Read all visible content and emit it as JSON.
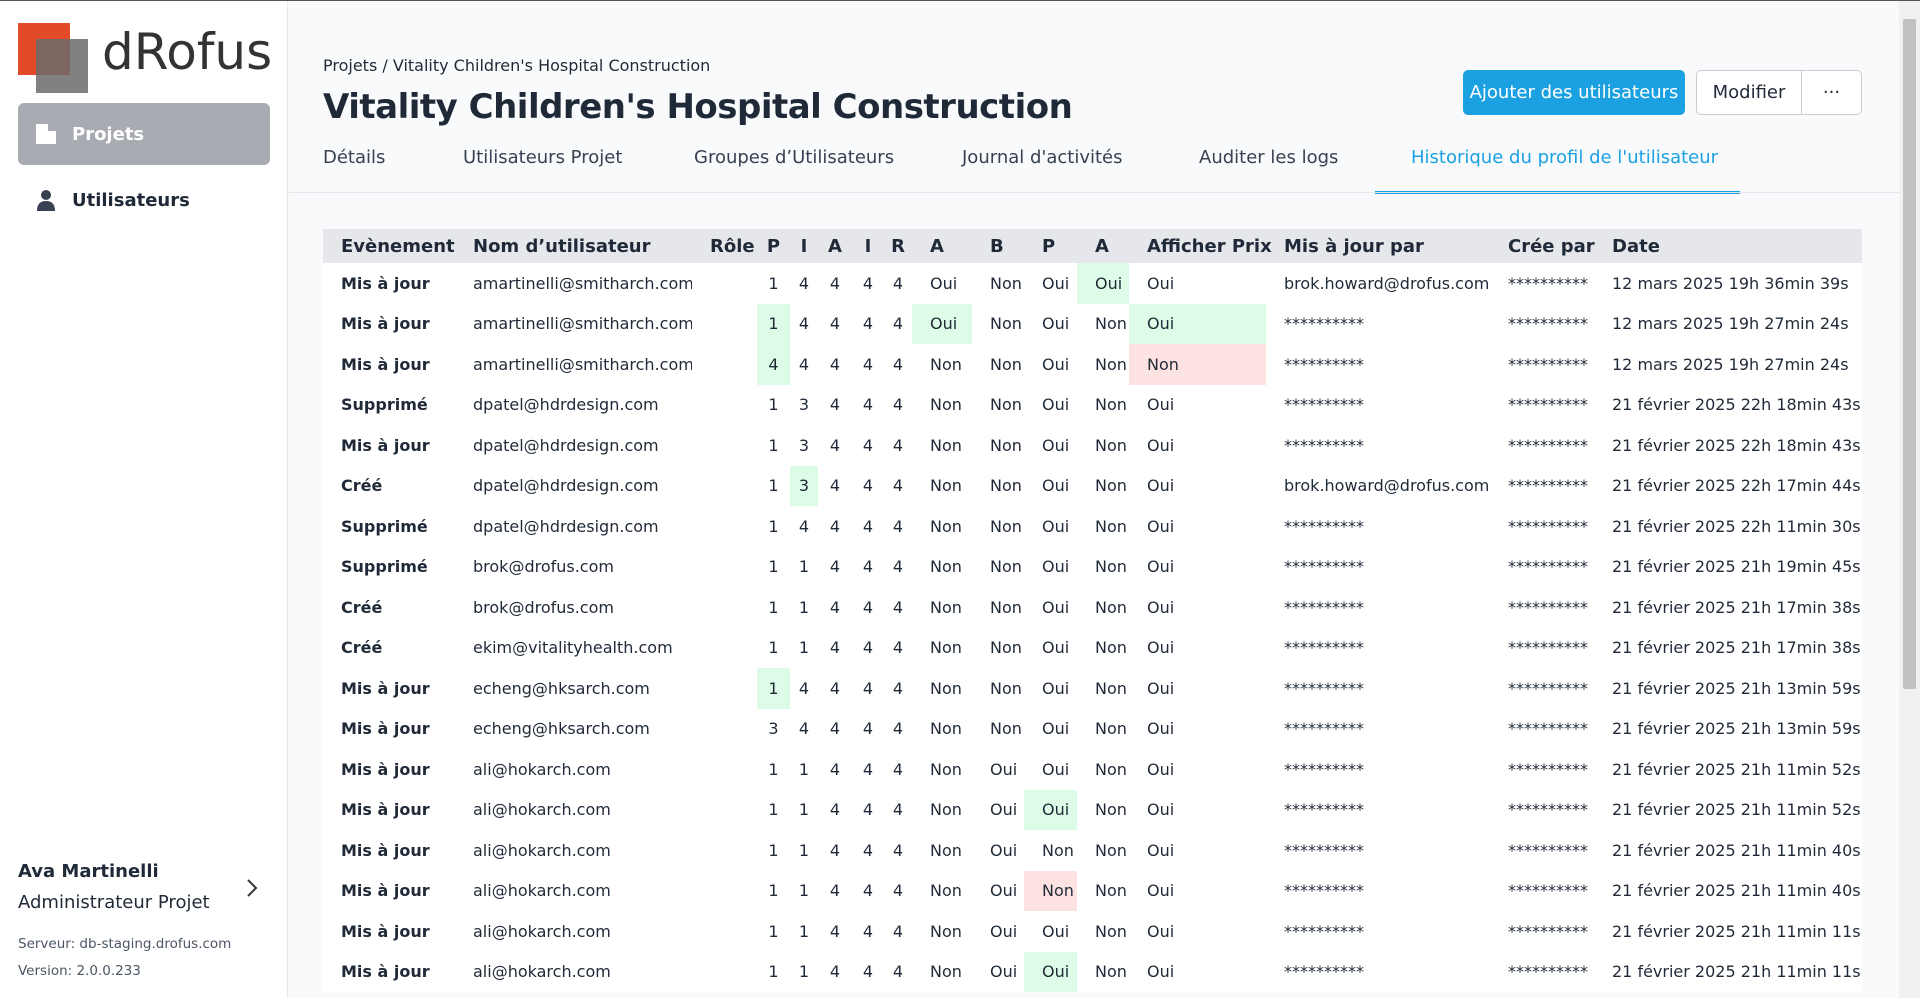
{
  "sidebar": {
    "logo": "dRofus",
    "nav": [
      "Projets",
      "Utilisateurs"
    ],
    "user_name": "Ava Martinelli",
    "user_role": "Administrateur Projet",
    "server": "Serveur: db-staging.drofus.com",
    "version": "Version: 2.0.0.233"
  },
  "header": {
    "breadcrumb": "Projets / Vitality Children's Hospital Construction",
    "title": "Vitality Children's Hospital Construction",
    "buttons": [
      "Ajouter des utilisateurs",
      "Modifier",
      "···"
    ]
  },
  "tabs": {
    "items": [
      "Détails",
      "Utilisateurs Projet",
      "Groupes d’Utilisateurs",
      "Journal d'activités",
      "Auditer les logs",
      "Historique du profil de l'utilisateur"
    ],
    "active": 5
  },
  "table": {
    "columns": [
      "Evènement",
      "Nom d’utilisateur",
      "Rôle",
      "P",
      "I",
      "A",
      "I",
      "R",
      "A",
      "B",
      "P",
      "A",
      "Afficher Prix",
      "Mis à jour par",
      "Crée par",
      "Date"
    ],
    "highlight_colors": {
      "green": "#dcfce7",
      "red": "#fde2e2"
    },
    "rows": [
      {
        "cells": [
          "Mis à jour",
          "amartinelli@smitharch.com",
          null,
          1,
          4,
          4,
          4,
          4,
          "Oui",
          "Non",
          "Oui",
          "Oui",
          "Oui",
          "brok.howard@drofus.com",
          "**********",
          "12 mars 2025 19h 36min 39s"
        ],
        "green": [
          11
        ],
        "red": []
      },
      {
        "cells": [
          "Mis à jour",
          "amartinelli@smitharch.com",
          null,
          1,
          4,
          4,
          4,
          4,
          "Oui",
          "Non",
          "Oui",
          "Non",
          "Oui",
          "**********",
          "**********",
          "12 mars 2025 19h 27min 24s"
        ],
        "green": [
          3,
          8,
          12
        ],
        "red": []
      },
      {
        "cells": [
          "Mis à jour",
          "amartinelli@smitharch.com",
          null,
          4,
          4,
          4,
          4,
          4,
          "Non",
          "Non",
          "Oui",
          "Non",
          "Non",
          "**********",
          "**********",
          "12 mars 2025 19h 27min 24s"
        ],
        "green": [
          3
        ],
        "red": [
          12
        ]
      },
      {
        "cells": [
          "Supprimé",
          "dpatel@hdrdesign.com",
          null,
          1,
          3,
          4,
          4,
          4,
          "Non",
          "Non",
          "Oui",
          "Non",
          "Oui",
          "**********",
          "**********",
          "21 février 2025 22h 18min 43s"
        ],
        "green": [],
        "red": []
      },
      {
        "cells": [
          "Mis à jour",
          "dpatel@hdrdesign.com",
          null,
          1,
          3,
          4,
          4,
          4,
          "Non",
          "Non",
          "Oui",
          "Non",
          "Oui",
          "**********",
          "**********",
          "21 février 2025 22h 18min 43s"
        ],
        "green": [],
        "red": []
      },
      {
        "cells": [
          "Créé",
          "dpatel@hdrdesign.com",
          null,
          1,
          3,
          4,
          4,
          4,
          "Non",
          "Non",
          "Oui",
          "Non",
          "Oui",
          "brok.howard@drofus.com",
          "**********",
          "21 février 2025 22h 17min 44s"
        ],
        "green": [
          4
        ],
        "red": []
      },
      {
        "cells": [
          "Supprimé",
          "dpatel@hdrdesign.com",
          null,
          1,
          4,
          4,
          4,
          4,
          "Non",
          "Non",
          "Oui",
          "Non",
          "Oui",
          "**********",
          "**********",
          "21 février 2025 22h 11min 30s"
        ],
        "green": [],
        "red": []
      },
      {
        "cells": [
          "Supprimé",
          "brok@drofus.com",
          null,
          1,
          1,
          4,
          4,
          4,
          "Non",
          "Non",
          "Oui",
          "Non",
          "Oui",
          "**********",
          "**********",
          "21 février 2025 21h 19min 45s"
        ],
        "green": [],
        "red": []
      },
      {
        "cells": [
          "Créé",
          "brok@drofus.com",
          null,
          1,
          1,
          4,
          4,
          4,
          "Non",
          "Non",
          "Oui",
          "Non",
          "Oui",
          "**********",
          "**********",
          "21 février 2025 21h 17min 38s"
        ],
        "green": [],
        "red": []
      },
      {
        "cells": [
          "Créé",
          "ekim@vitalityhealth.com",
          null,
          1,
          1,
          4,
          4,
          4,
          "Non",
          "Non",
          "Oui",
          "Non",
          "Oui",
          "**********",
          "**********",
          "21 février 2025 21h 17min 38s"
        ],
        "green": [],
        "red": []
      },
      {
        "cells": [
          "Mis à jour",
          "echeng@hksarch.com",
          null,
          1,
          4,
          4,
          4,
          4,
          "Non",
          "Non",
          "Oui",
          "Non",
          "Oui",
          "**********",
          "**********",
          "21 février 2025 21h 13min 59s"
        ],
        "green": [
          3
        ],
        "red": []
      },
      {
        "cells": [
          "Mis à jour",
          "echeng@hksarch.com",
          null,
          3,
          4,
          4,
          4,
          4,
          "Non",
          "Non",
          "Oui",
          "Non",
          "Oui",
          "**********",
          "**********",
          "21 février 2025 21h 13min 59s"
        ],
        "green": [],
        "red": []
      },
      {
        "cells": [
          "Mis à jour",
          "ali@hokarch.com",
          null,
          1,
          1,
          4,
          4,
          4,
          "Non",
          "Oui",
          "Oui",
          "Non",
          "Oui",
          "**********",
          "**********",
          "21 février 2025 21h 11min 52s"
        ],
        "green": [],
        "red": []
      },
      {
        "cells": [
          "Mis à jour",
          "ali@hokarch.com",
          null,
          1,
          1,
          4,
          4,
          4,
          "Non",
          "Oui",
          "Oui",
          "Non",
          "Oui",
          "**********",
          "**********",
          "21 février 2025 21h 11min 52s"
        ],
        "green": [
          10
        ],
        "red": []
      },
      {
        "cells": [
          "Mis à jour",
          "ali@hokarch.com",
          null,
          1,
          1,
          4,
          4,
          4,
          "Non",
          "Oui",
          "Non",
          "Non",
          "Oui",
          "**********",
          "**********",
          "21 février 2025 21h 11min 40s"
        ],
        "green": [],
        "red": []
      },
      {
        "cells": [
          "Mis à jour",
          "ali@hokarch.com",
          null,
          1,
          1,
          4,
          4,
          4,
          "Non",
          "Oui",
          "Non",
          "Non",
          "Oui",
          "**********",
          "**********",
          "21 février 2025 21h 11min 40s"
        ],
        "green": [],
        "red": [
          10
        ]
      },
      {
        "cells": [
          "Mis à jour",
          "ali@hokarch.com",
          null,
          1,
          1,
          4,
          4,
          4,
          "Non",
          "Oui",
          "Oui",
          "Non",
          "Oui",
          "**********",
          "**********",
          "21 février 2025 21h 11min 11s"
        ],
        "green": [],
        "red": []
      },
      {
        "cells": [
          "Mis à jour",
          "ali@hokarch.com",
          null,
          1,
          1,
          4,
          4,
          4,
          "Non",
          "Oui",
          "Oui",
          "Non",
          "Oui",
          "**********",
          "**********",
          "21 février 2025 21h 11min 11s"
        ],
        "green": [
          10
        ],
        "red": []
      }
    ]
  }
}
